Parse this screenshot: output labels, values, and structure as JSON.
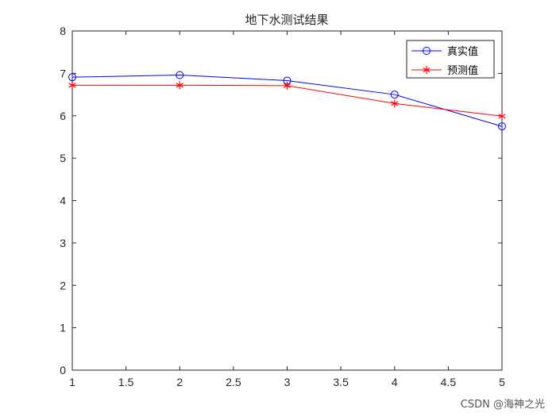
{
  "chart_data": {
    "type": "line",
    "title": "地下水测试结果",
    "xlabel": "",
    "ylabel": "",
    "xlim": [
      1,
      5
    ],
    "ylim": [
      0,
      8
    ],
    "xticks": [
      1,
      1.5,
      2,
      2.5,
      3,
      3.5,
      4,
      4.5,
      5
    ],
    "xtick_labels": [
      "1",
      "1.5",
      "2",
      "2.5",
      "3",
      "3.5",
      "4",
      "4.5",
      "5"
    ],
    "yticks": [
      0,
      1,
      2,
      3,
      4,
      5,
      6,
      7,
      8
    ],
    "ytick_labels": [
      "0",
      "1",
      "2",
      "3",
      "4",
      "5",
      "6",
      "7",
      "8"
    ],
    "grid": false,
    "legend_position": "top-right",
    "x": [
      1,
      2,
      3,
      4,
      5
    ],
    "series": [
      {
        "name": "真实值",
        "values": [
          6.91,
          6.96,
          6.83,
          6.5,
          5.75
        ],
        "color": "#0000ff",
        "marker": "circle"
      },
      {
        "name": "预测值",
        "values": [
          6.72,
          6.72,
          6.71,
          6.29,
          5.99
        ],
        "color": "#ff0000",
        "marker": "asterisk"
      }
    ]
  },
  "watermark": "CSDN @海神之光"
}
